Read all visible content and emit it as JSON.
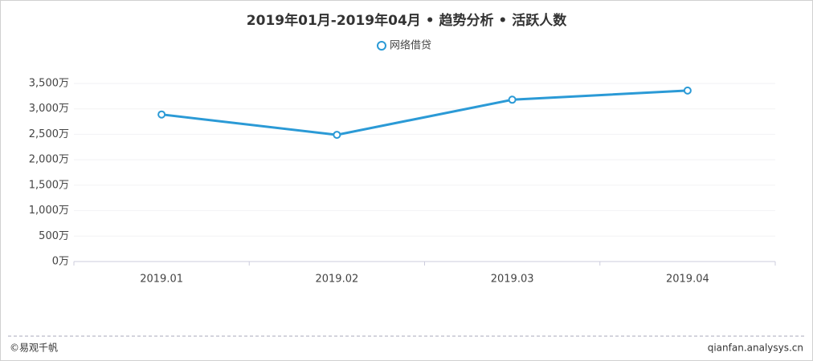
{
  "chart_data": {
    "type": "line",
    "title": "2019年01月-2019年04月 • 趋势分析 • 活跃人数",
    "categories": [
      "2019.01",
      "2019.02",
      "2019.03",
      "2019.04"
    ],
    "series": [
      {
        "name": "网络借贷",
        "color": "#2b9ad6",
        "values": [
          2890,
          2490,
          3180,
          3360
        ]
      }
    ],
    "ylim": [
      0,
      3500
    ],
    "yticks": [
      {
        "value": 0,
        "label": "0万"
      },
      {
        "value": 500,
        "label": "500万"
      },
      {
        "value": 1000,
        "label": "1,000万"
      },
      {
        "value": 1500,
        "label": "1,500万"
      },
      {
        "value": 2000,
        "label": "2,000万"
      },
      {
        "value": 2500,
        "label": "2,500万"
      },
      {
        "value": 3000,
        "label": "3,000万"
      },
      {
        "value": 3500,
        "label": "3,500万"
      }
    ],
    "grid": true,
    "footer_left": "©易观千帆",
    "footer_right": "qianfan.analysys.cn"
  }
}
